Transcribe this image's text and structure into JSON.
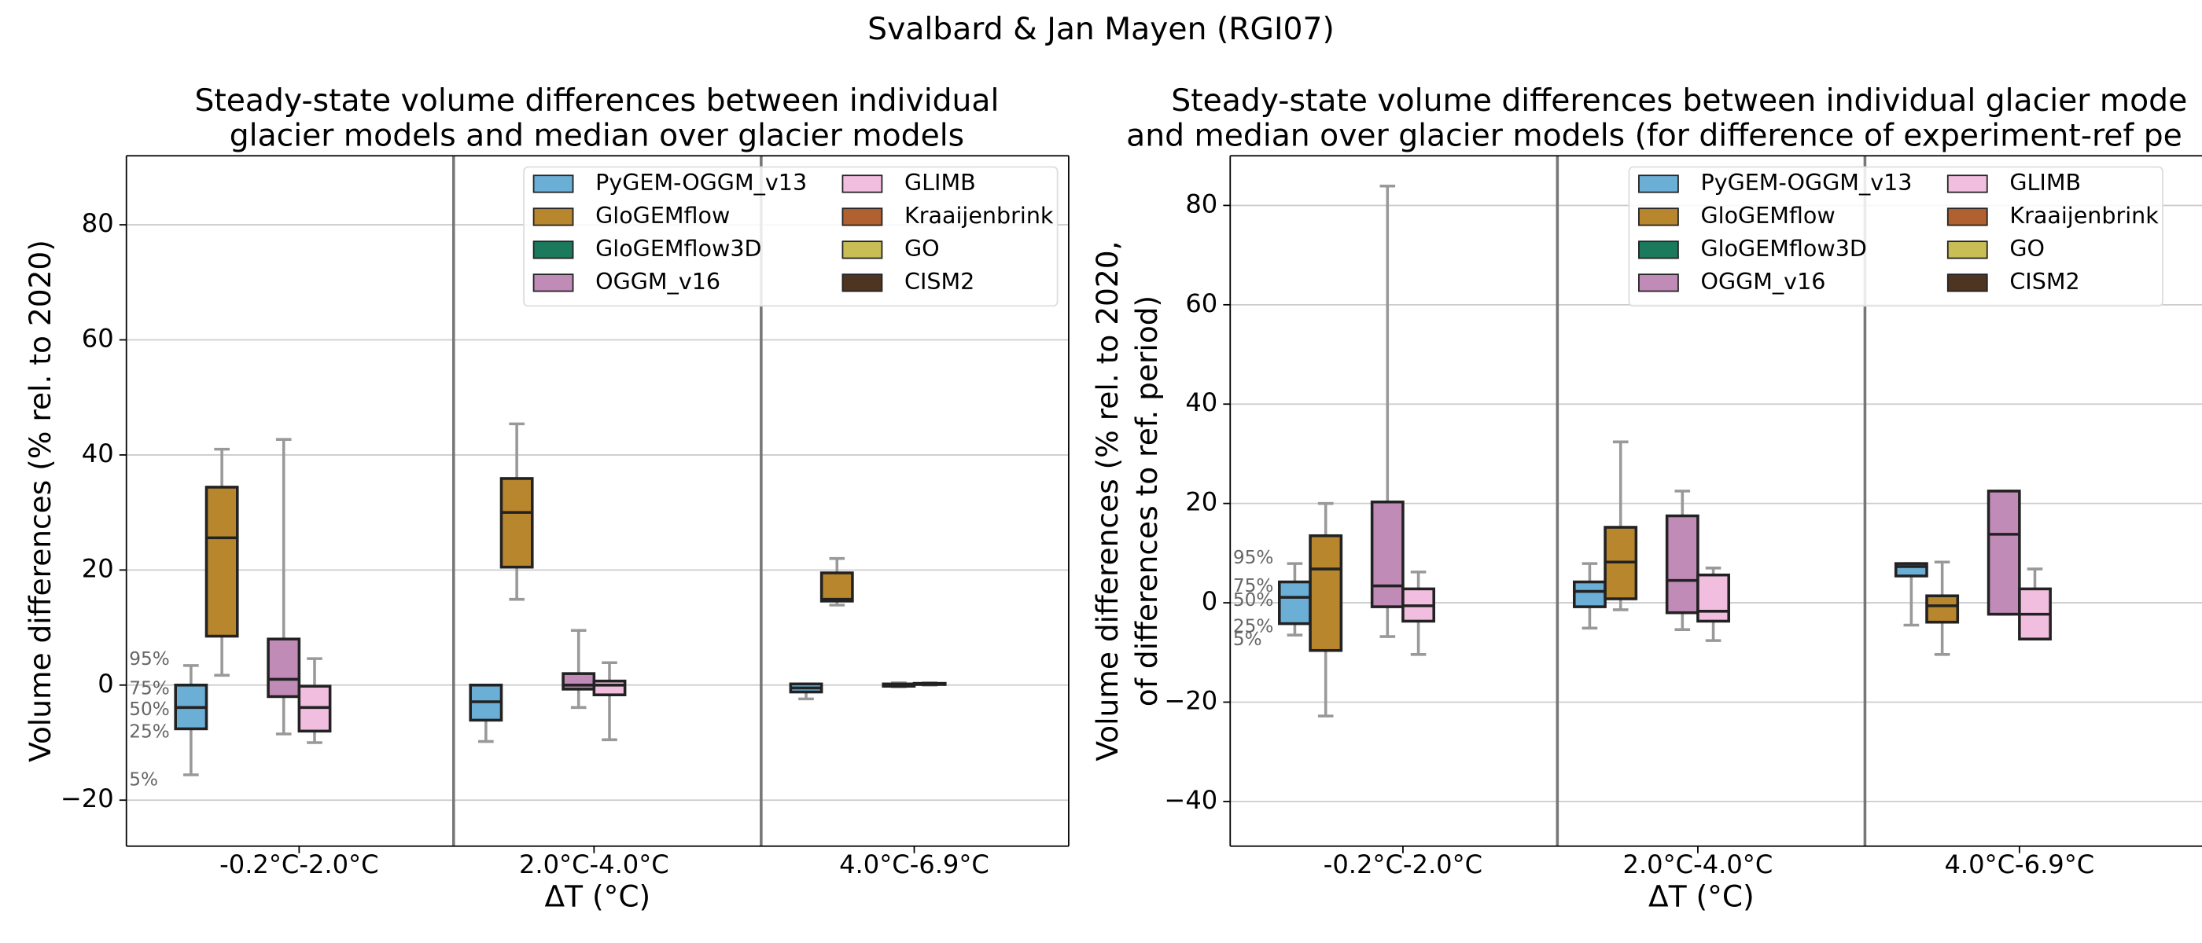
{
  "title": "Svalbard & Jan Mayen (RGI07)",
  "chart_data": [
    {
      "type": "box",
      "title": [
        "Steady-state volume differences between individual",
        "glacier models and median over glacier models"
      ],
      "xlabel": "ΔT (°C)",
      "ylabel": [
        "Volume differences (% rel. to 2020)"
      ],
      "categories": [
        "-0.2°C-2.0°C",
        "2.0°C-4.0°C",
        "4.0°C-6.9°C"
      ],
      "ylim": [
        -28,
        92
      ],
      "yticks": [
        {
          "value": -20,
          "label": "−20"
        },
        0,
        20,
        40,
        60,
        80
      ],
      "grid": true,
      "legend": "upper right",
      "annotations": [
        "95%",
        "75%",
        "50%",
        "25%",
        "5%"
      ],
      "series": [
        {
          "name": "PyGEM-OGGM_v13",
          "color": "#6baed6",
          "values": [
            [
              -15.6,
              -7.6,
              -3.9,
              0,
              3.4
            ],
            [
              -9.8,
              -6.1,
              -2.9,
              0,
              0
            ],
            [
              -2.4,
              -1.2,
              -0.5,
              0.2,
              0.2
            ]
          ]
        },
        {
          "name": "GloGEMflow",
          "color": "#b8862d",
          "values": [
            [
              1.7,
              8.5,
              25.6,
              34.4,
              41
            ],
            [
              14.9,
              20.5,
              30,
              35.9,
              45.4
            ],
            [
              13.9,
              14.6,
              14.9,
              19.5,
              22
            ]
          ]
        },
        {
          "name": "GloGEMflow3D",
          "color": "#1b7a5c",
          "values": [
            null,
            null,
            null
          ]
        },
        {
          "name": "OGGM_v16",
          "color": "#c08bb7",
          "values": [
            [
              -8.5,
              -2,
              1,
              8,
              42.7
            ],
            [
              -3.9,
              -0.7,
              0,
              2,
              9.5
            ],
            [
              -0.3,
              -0.2,
              0,
              0.2,
              0.4
            ]
          ]
        },
        {
          "name": "GLIMB",
          "color": "#f1bedf",
          "values": [
            [
              -10,
              -8,
              -3.9,
              -0.2,
              4.6
            ],
            [
              -9.5,
              -1.7,
              0,
              0.7,
              3.9
            ],
            [
              0,
              0.1,
              0.2,
              0.3,
              0.4
            ]
          ]
        },
        {
          "name": "Kraaijenbrink",
          "color": "#b1602f",
          "values": [
            null,
            null,
            null
          ]
        },
        {
          "name": "GO",
          "color": "#c9bd56",
          "values": [
            null,
            null,
            null
          ]
        },
        {
          "name": "CISM2",
          "color": "#4e3521",
          "values": [
            null,
            null,
            null
          ]
        }
      ]
    },
    {
      "type": "box",
      "title": [
        "Steady-state volume differences between individual glacier mode",
        "and median over glacier models (for difference of experiment-ref pe"
      ],
      "xlabel": "ΔT (°C)",
      "ylabel": [
        "Volume differences (% rel. to 2020,",
        "of differences to ref. period)"
      ],
      "categories": [
        "-0.2°C-2.0°C",
        "2.0°C-4.0°C",
        "4.0°C-6.9°C"
      ],
      "ylim": [
        -49,
        90
      ],
      "yticks": [
        {
          "value": -40,
          "label": "−40"
        },
        {
          "value": -20,
          "label": "−20"
        },
        0,
        20,
        40,
        60,
        80
      ],
      "grid": true,
      "legend": "upper right",
      "annotations": [
        "95%",
        "75%",
        "50%",
        "25%",
        "5%"
      ],
      "series": [
        {
          "name": "PyGEM-OGGM_v13",
          "color": "#6baed6",
          "values": [
            [
              -6.5,
              -4.2,
              1.1,
              4.2,
              7.9
            ],
            [
              -5.1,
              -0.8,
              2.3,
              4.2,
              7.9
            ],
            [
              -4.5,
              5.4,
              7.3,
              7.9,
              7.9
            ]
          ]
        },
        {
          "name": "GloGEMflow",
          "color": "#b8862d",
          "values": [
            [
              -22.8,
              -9.6,
              6.8,
              13.5,
              20
            ],
            [
              -1.4,
              0.8,
              8.2,
              15.2,
              32.4
            ],
            [
              -10.4,
              -3.9,
              -0.6,
              1.4,
              8.2
            ]
          ]
        },
        {
          "name": "GloGEMflow3D",
          "color": "#1b7a5c",
          "values": [
            null,
            null,
            null
          ]
        },
        {
          "name": "OGGM_v16",
          "color": "#c08bb7",
          "values": [
            [
              -6.8,
              -0.8,
              3.4,
              20.3,
              83.9
            ],
            [
              -5.4,
              -2,
              4.5,
              17.5,
              22.5
            ],
            [
              -2.3,
              -2.3,
              13.8,
              22.5,
              22.5
            ]
          ]
        },
        {
          "name": "GLIMB",
          "color": "#f1bedf",
          "values": [
            [
              -10.4,
              -3.7,
              -0.6,
              2.8,
              6.2
            ],
            [
              -7.6,
              -3.7,
              -1.7,
              5.6,
              7
            ],
            [
              -7.3,
              -7.3,
              -2.3,
              2.8,
              6.8
            ]
          ]
        },
        {
          "name": "Kraaijenbrink",
          "color": "#b1602f",
          "values": [
            null,
            null,
            null
          ]
        },
        {
          "name": "GO",
          "color": "#c9bd56",
          "values": [
            null,
            null,
            null
          ]
        },
        {
          "name": "CISM2",
          "color": "#4e3521",
          "values": [
            null,
            null,
            null
          ]
        }
      ]
    }
  ]
}
